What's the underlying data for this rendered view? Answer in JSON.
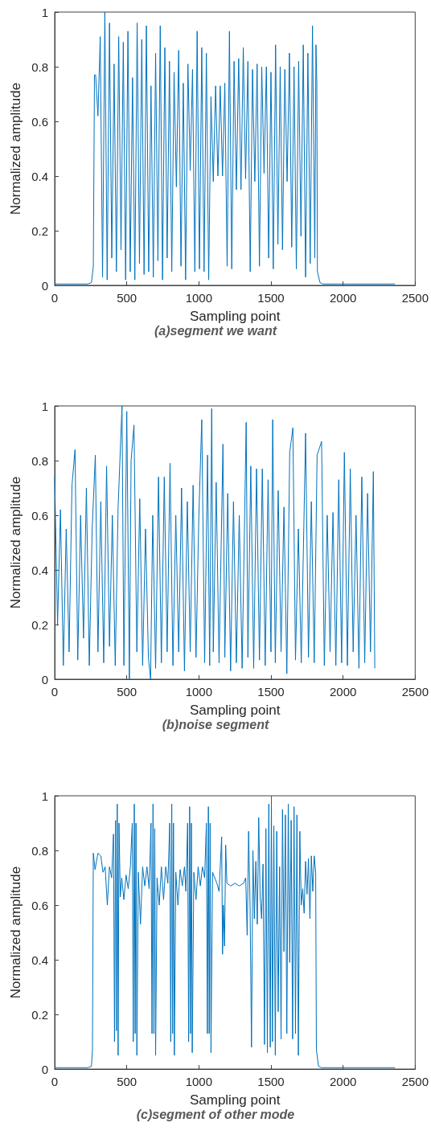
{
  "chart_data": [
    {
      "type": "line",
      "xlabel": "Sampling point",
      "ylabel": "Normalized amplitude",
      "annotations": [
        "(a)segment we want"
      ],
      "color": "#0072bd",
      "xlim": [
        0,
        2500
      ],
      "xticks": [
        0,
        500,
        1000,
        1500,
        2000,
        2500
      ],
      "ylim": [
        0,
        1
      ],
      "yticks": [
        0,
        0.2,
        0.4,
        0.6,
        0.8,
        1
      ],
      "x": [
        0,
        230,
        255,
        268,
        276,
        284,
        300,
        316,
        332,
        348,
        364,
        380,
        396,
        412,
        428,
        444,
        460,
        476,
        492,
        508,
        524,
        540,
        556,
        572,
        588,
        604,
        620,
        636,
        652,
        668,
        684,
        700,
        716,
        732,
        748,
        764,
        780,
        796,
        812,
        828,
        844,
        860,
        876,
        892,
        908,
        924,
        940,
        956,
        972,
        988,
        1004,
        1020,
        1036,
        1052,
        1068,
        1084,
        1100,
        1116,
        1132,
        1148,
        1164,
        1180,
        1196,
        1212,
        1228,
        1244,
        1260,
        1276,
        1292,
        1308,
        1324,
        1340,
        1356,
        1372,
        1388,
        1404,
        1420,
        1436,
        1452,
        1468,
        1484,
        1500,
        1516,
        1532,
        1548,
        1564,
        1580,
        1596,
        1612,
        1628,
        1644,
        1660,
        1676,
        1692,
        1708,
        1724,
        1740,
        1756,
        1772,
        1788,
        1804,
        1812,
        1818,
        1822,
        1840,
        1860,
        2360
      ],
      "values": [
        0.005,
        0.005,
        0.01,
        0.07,
        0.77,
        0.77,
        0.62,
        0.91,
        0.03,
        1.0,
        0.02,
        0.96,
        0.1,
        0.81,
        0.05,
        0.91,
        0.13,
        0.89,
        0.02,
        0.93,
        0.05,
        0.76,
        0.02,
        0.96,
        0.08,
        0.9,
        0.04,
        0.95,
        0.05,
        0.73,
        0.03,
        0.85,
        0.09,
        0.95,
        0.02,
        0.87,
        0.1,
        0.82,
        0.05,
        0.78,
        0.36,
        0.86,
        0.07,
        0.74,
        0.02,
        0.81,
        0.42,
        0.79,
        0.05,
        0.93,
        0.06,
        0.87,
        0.05,
        0.85,
        0.02,
        0.69,
        0.38,
        0.73,
        0.4,
        0.73,
        0.4,
        0.74,
        0.07,
        0.93,
        0.06,
        0.82,
        0.35,
        0.83,
        0.35,
        0.87,
        0.39,
        0.82,
        0.05,
        0.79,
        0.38,
        0.81,
        0.07,
        0.8,
        0.41,
        0.8,
        0.1,
        0.78,
        0.06,
        0.88,
        0.15,
        0.8,
        0.13,
        0.79,
        0.38,
        0.85,
        0.14,
        0.8,
        0.06,
        0.82,
        0.18,
        0.88,
        0.03,
        0.85,
        0.08,
        0.95,
        0.1,
        0.88,
        0.74,
        0.05,
        0.01,
        0.005,
        0.005
      ]
    },
    {
      "type": "line",
      "xlabel": "Sampling point",
      "ylabel": "Normalized amplitude",
      "annotations": [
        "(b)noise segment"
      ],
      "color": "#0072bd",
      "xlim": [
        0,
        2500
      ],
      "xticks": [
        0,
        500,
        1000,
        1500,
        2000,
        2500
      ],
      "ylim": [
        0,
        1
      ],
      "yticks": [
        0,
        0.2,
        0.4,
        0.6,
        0.8,
        1
      ],
      "x": [
        0,
        20,
        40,
        60,
        80,
        100,
        120,
        141,
        160,
        180,
        200,
        220,
        240,
        260,
        282,
        300,
        320,
        340,
        360,
        380,
        400,
        420,
        440,
        467,
        480,
        500,
        518,
        530,
        550,
        570,
        590,
        610,
        630,
        650,
        665,
        680,
        700,
        720,
        740,
        760,
        780,
        800,
        820,
        840,
        860,
        880,
        900,
        920,
        940,
        960,
        980,
        1000,
        1020,
        1040,
        1060,
        1075,
        1089,
        1100,
        1120,
        1140,
        1167,
        1180,
        1200,
        1220,
        1240,
        1260,
        1280,
        1300,
        1328,
        1340,
        1360,
        1380,
        1400,
        1420,
        1440,
        1460,
        1480,
        1500,
        1512,
        1530,
        1550,
        1570,
        1590,
        1610,
        1630,
        1652,
        1670,
        1690,
        1710,
        1740,
        1760,
        1780,
        1800,
        1820,
        1851,
        1870,
        1890,
        1910,
        1930,
        1950,
        1970,
        1990,
        2009,
        2030,
        2050,
        2070,
        2090,
        2110,
        2130,
        2150,
        2170,
        2190,
        2210,
        2220
      ],
      "values": [
        0.74,
        0.2,
        0.62,
        0.05,
        0.55,
        0.1,
        0.71,
        0.84,
        0.07,
        0.6,
        0.15,
        0.7,
        0.05,
        0.55,
        0.82,
        0.1,
        0.65,
        0.06,
        0.78,
        0.12,
        0.6,
        0.05,
        0.63,
        1.0,
        0.05,
        0.98,
        0,
        0.8,
        0.93,
        0.1,
        0.66,
        0.05,
        0.55,
        0.08,
        0,
        0.6,
        0.04,
        0.74,
        0.06,
        0.74,
        0.1,
        0.79,
        0.05,
        0.6,
        0.1,
        0.7,
        0.03,
        0.65,
        0.1,
        0.71,
        0.08,
        0.6,
        0.95,
        0.06,
        0.82,
        0.05,
        0.99,
        0.1,
        0.72,
        0.06,
        0.86,
        0.08,
        0.68,
        0.03,
        0.65,
        0.06,
        0.6,
        0.04,
        0.94,
        0.08,
        0.78,
        0.04,
        0.77,
        0.07,
        0.77,
        0.05,
        0.73,
        0.1,
        0.95,
        0.06,
        0.69,
        0.1,
        0.63,
        0.02,
        0.83,
        0.92,
        0.07,
        0.55,
        0.06,
        0.9,
        0.08,
        0.65,
        0.06,
        0.82,
        0.87,
        0.05,
        0.6,
        0.1,
        0.61,
        0.05,
        0.73,
        0.06,
        0.83,
        0.05,
        0.77,
        0.1,
        0.6,
        0.04,
        0.74,
        0.06,
        0.68,
        0.1,
        0.76,
        0.04
      ]
    },
    {
      "type": "line",
      "xlabel": "Sampling point",
      "ylabel": "Normalized amplitude",
      "annotations": [
        "(c)segment of other mode"
      ],
      "color": "#0072bd",
      "xlim": [
        0,
        2500
      ],
      "xticks": [
        0,
        500,
        1000,
        1500,
        2000,
        2500
      ],
      "ylim": [
        0,
        1
      ],
      "yticks": [
        0,
        0.2,
        0.4,
        0.6,
        0.8,
        1
      ],
      "x": [
        0,
        230,
        255,
        262,
        268,
        280,
        300,
        320,
        335,
        350,
        365,
        380,
        395,
        408,
        415,
        422,
        428,
        434,
        440,
        446,
        455,
        465,
        480,
        495,
        510,
        525,
        538,
        545,
        552,
        558,
        564,
        570,
        580,
        595,
        610,
        625,
        640,
        655,
        668,
        675,
        682,
        688,
        694,
        700,
        710,
        725,
        740,
        755,
        770,
        785,
        798,
        805,
        812,
        818,
        824,
        830,
        840,
        855,
        870,
        885,
        900,
        910,
        922,
        929,
        936,
        942,
        948,
        954,
        965,
        980,
        995,
        1010,
        1025,
        1040,
        1052,
        1059,
        1066,
        1072,
        1078,
        1084,
        1095,
        1110,
        1125,
        1140,
        1158,
        1164,
        1170,
        1178,
        1186,
        1194,
        1220,
        1250,
        1280,
        1310,
        1325,
        1335,
        1345,
        1355,
        1365,
        1375,
        1385,
        1395,
        1405,
        1415,
        1425,
        1435,
        1445,
        1455,
        1465,
        1475,
        1485,
        1495,
        1503,
        1510,
        1520,
        1530,
        1540,
        1550,
        1560,
        1570,
        1580,
        1590,
        1600,
        1610,
        1620,
        1630,
        1640,
        1650,
        1660,
        1670,
        1680,
        1690,
        1700,
        1710,
        1720,
        1730,
        1740,
        1750,
        1760,
        1770,
        1780,
        1790,
        1800,
        1810,
        1815,
        1830,
        1850,
        2360
      ],
      "values": [
        0.005,
        0.005,
        0.01,
        0.07,
        0.79,
        0.73,
        0.79,
        0.78,
        0.72,
        0.74,
        0.6,
        0.74,
        0.7,
        0.86,
        0.1,
        0.91,
        0.14,
        0.97,
        0.05,
        0.9,
        0.63,
        0.7,
        0.62,
        0.71,
        0.66,
        0.74,
        0.9,
        0.1,
        0.97,
        0.13,
        0.9,
        0.05,
        0.72,
        0.53,
        0.74,
        0.67,
        0.74,
        0.66,
        0.9,
        0.13,
        0.97,
        0.13,
        0.88,
        0.05,
        0.7,
        0.6,
        0.74,
        0.62,
        0.74,
        0.68,
        0.9,
        0.1,
        0.97,
        0.13,
        0.9,
        0.05,
        0.72,
        0.6,
        0.73,
        0.67,
        0.74,
        0.65,
        0.9,
        0.1,
        0.96,
        0.13,
        0.9,
        0.06,
        0.72,
        0.62,
        0.74,
        0.67,
        0.74,
        0.7,
        0.9,
        0.13,
        0.96,
        0.13,
        0.9,
        0.06,
        0.72,
        0.7,
        0.68,
        0.65,
        0.85,
        0.42,
        0.6,
        0.45,
        0.82,
        0.68,
        0.67,
        0.68,
        0.67,
        0.68,
        0.7,
        0.49,
        0.87,
        0.6,
        0.08,
        0.8,
        0.55,
        0.76,
        0.53,
        0.92,
        0.63,
        0.55,
        0.75,
        0.09,
        0.88,
        0.06,
        0.97,
        0.08,
        1.0,
        0.1,
        0.89,
        0.05,
        0.87,
        0.21,
        0.74,
        0.11,
        0.95,
        0.43,
        0.93,
        0.13,
        0.97,
        0.39,
        0.91,
        0.11,
        0.96,
        0.13,
        0.93,
        0.05,
        0.87,
        0.6,
        0.66,
        0.57,
        0.76,
        0.64,
        0.77,
        0.55,
        0.78,
        0.65,
        0.78,
        0.72,
        0.07,
        0.01,
        0.005,
        0.005
      ]
    }
  ]
}
